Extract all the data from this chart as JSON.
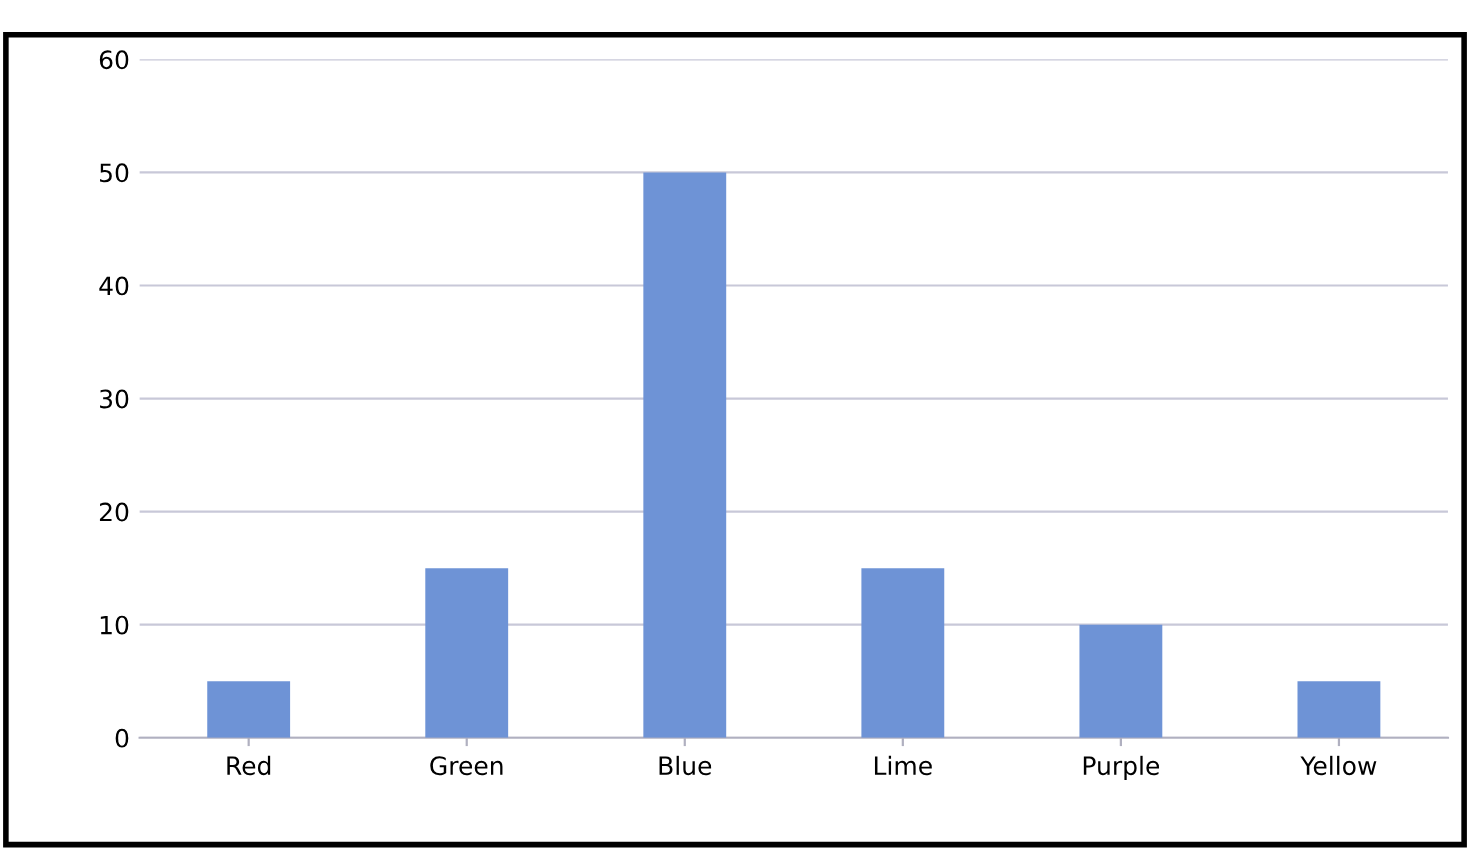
{
  "chart_data": {
    "type": "bar",
    "categories": [
      "Red",
      "Green",
      "Blue",
      "Lime",
      "Purple",
      "Yellow"
    ],
    "values": [
      5,
      15,
      50,
      15,
      10,
      5
    ],
    "color": "#6e93d6",
    "ylim": [
      0,
      60
    ],
    "yticks": [
      0,
      10,
      20,
      30,
      40,
      50,
      60
    ],
    "grid": "y"
  }
}
